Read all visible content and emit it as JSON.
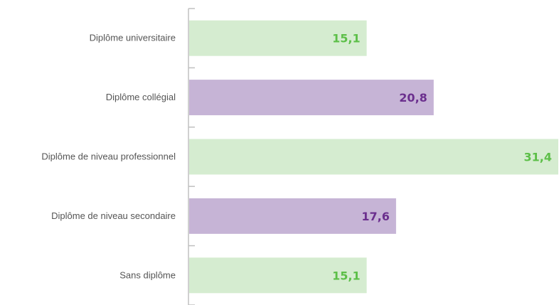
{
  "chart_data": {
    "type": "bar",
    "orientation": "horizontal",
    "categories": [
      "Diplôme universitaire",
      "Diplôme collégial",
      "Diplôme de niveau professionnel",
      "Diplôme de niveau secondaire",
      "Sans diplôme"
    ],
    "values": [
      15.1,
      20.8,
      31.4,
      17.6,
      15.1
    ],
    "value_labels": [
      "15,1",
      "20,8",
      "31,4",
      "17,6",
      "15,1"
    ],
    "title": "",
    "xlabel": "",
    "ylabel": "",
    "xlim": [
      0,
      31.4
    ],
    "grid": false,
    "legend": "none",
    "colors": {
      "bars": [
        "#d5ecd0",
        "#c6b4d6",
        "#d5ecd0",
        "#c6b4d6",
        "#d5ecd0"
      ],
      "labels": [
        "#5cbf48",
        "#6b2f8e",
        "#5cbf48",
        "#6b2f8e",
        "#5cbf48"
      ],
      "axis": "#c0c0c0",
      "category_text": "#555555"
    }
  }
}
